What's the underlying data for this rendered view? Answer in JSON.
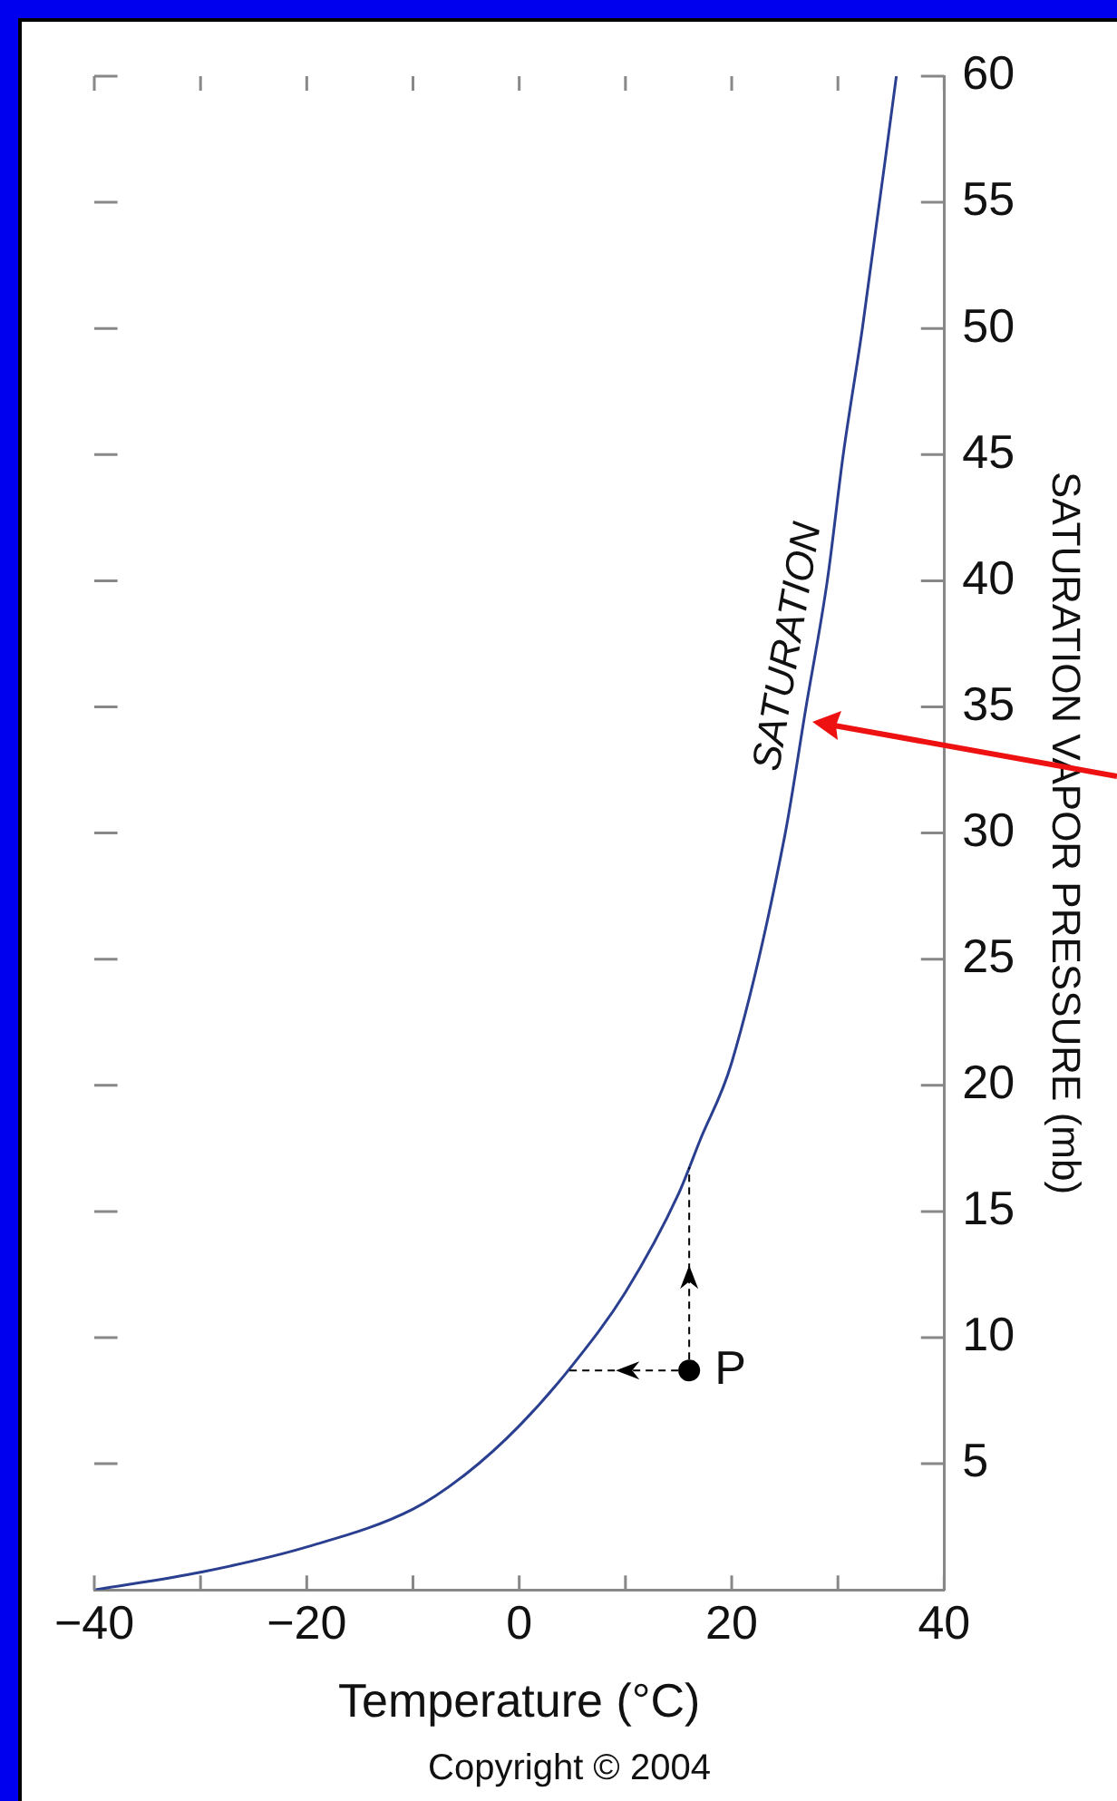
{
  "chart_data": {
    "type": "line",
    "xlabel": "Temperature (°C)",
    "ylabel": "SATURATION VAPOR PRESSURE (mb)",
    "xlim": [
      -40,
      40
    ],
    "xticks": [
      -40,
      {
        "value": -30,
        "label": null
      },
      -20,
      {
        "value": -10,
        "label": null
      },
      0,
      {
        "value": 10,
        "label": null
      },
      20,
      {
        "value": 30,
        "label": null
      },
      40
    ],
    "ylim": [
      0,
      60
    ],
    "yticks": [
      5,
      10,
      15,
      20,
      25,
      30,
      35,
      40,
      45,
      50,
      55,
      60
    ],
    "series": [
      {
        "color": "#2a3f8f",
        "x": [
          -40,
          -30,
          -20,
          -10,
          -5,
          0,
          5,
          10,
          15,
          17,
          20,
          25,
          27,
          29,
          30.5,
          32.3,
          35.5
        ],
        "values": [
          0,
          0.7,
          1.7,
          3.2,
          4.6,
          6.5,
          8.9,
          11.8,
          15.7,
          17.8,
          20.9,
          29.9,
          35,
          40,
          45,
          50,
          60
        ]
      },
      {
        "type": "scatter",
        "color": "#000000",
        "marker": "circle",
        "x": [
          16
        ],
        "values": [
          8.7
        ]
      }
    ],
    "annotations": [
      "SATURATION",
      {
        "text": "P",
        "x": 16,
        "y": 8.7
      },
      "Copyright © 2004"
    ]
  }
}
